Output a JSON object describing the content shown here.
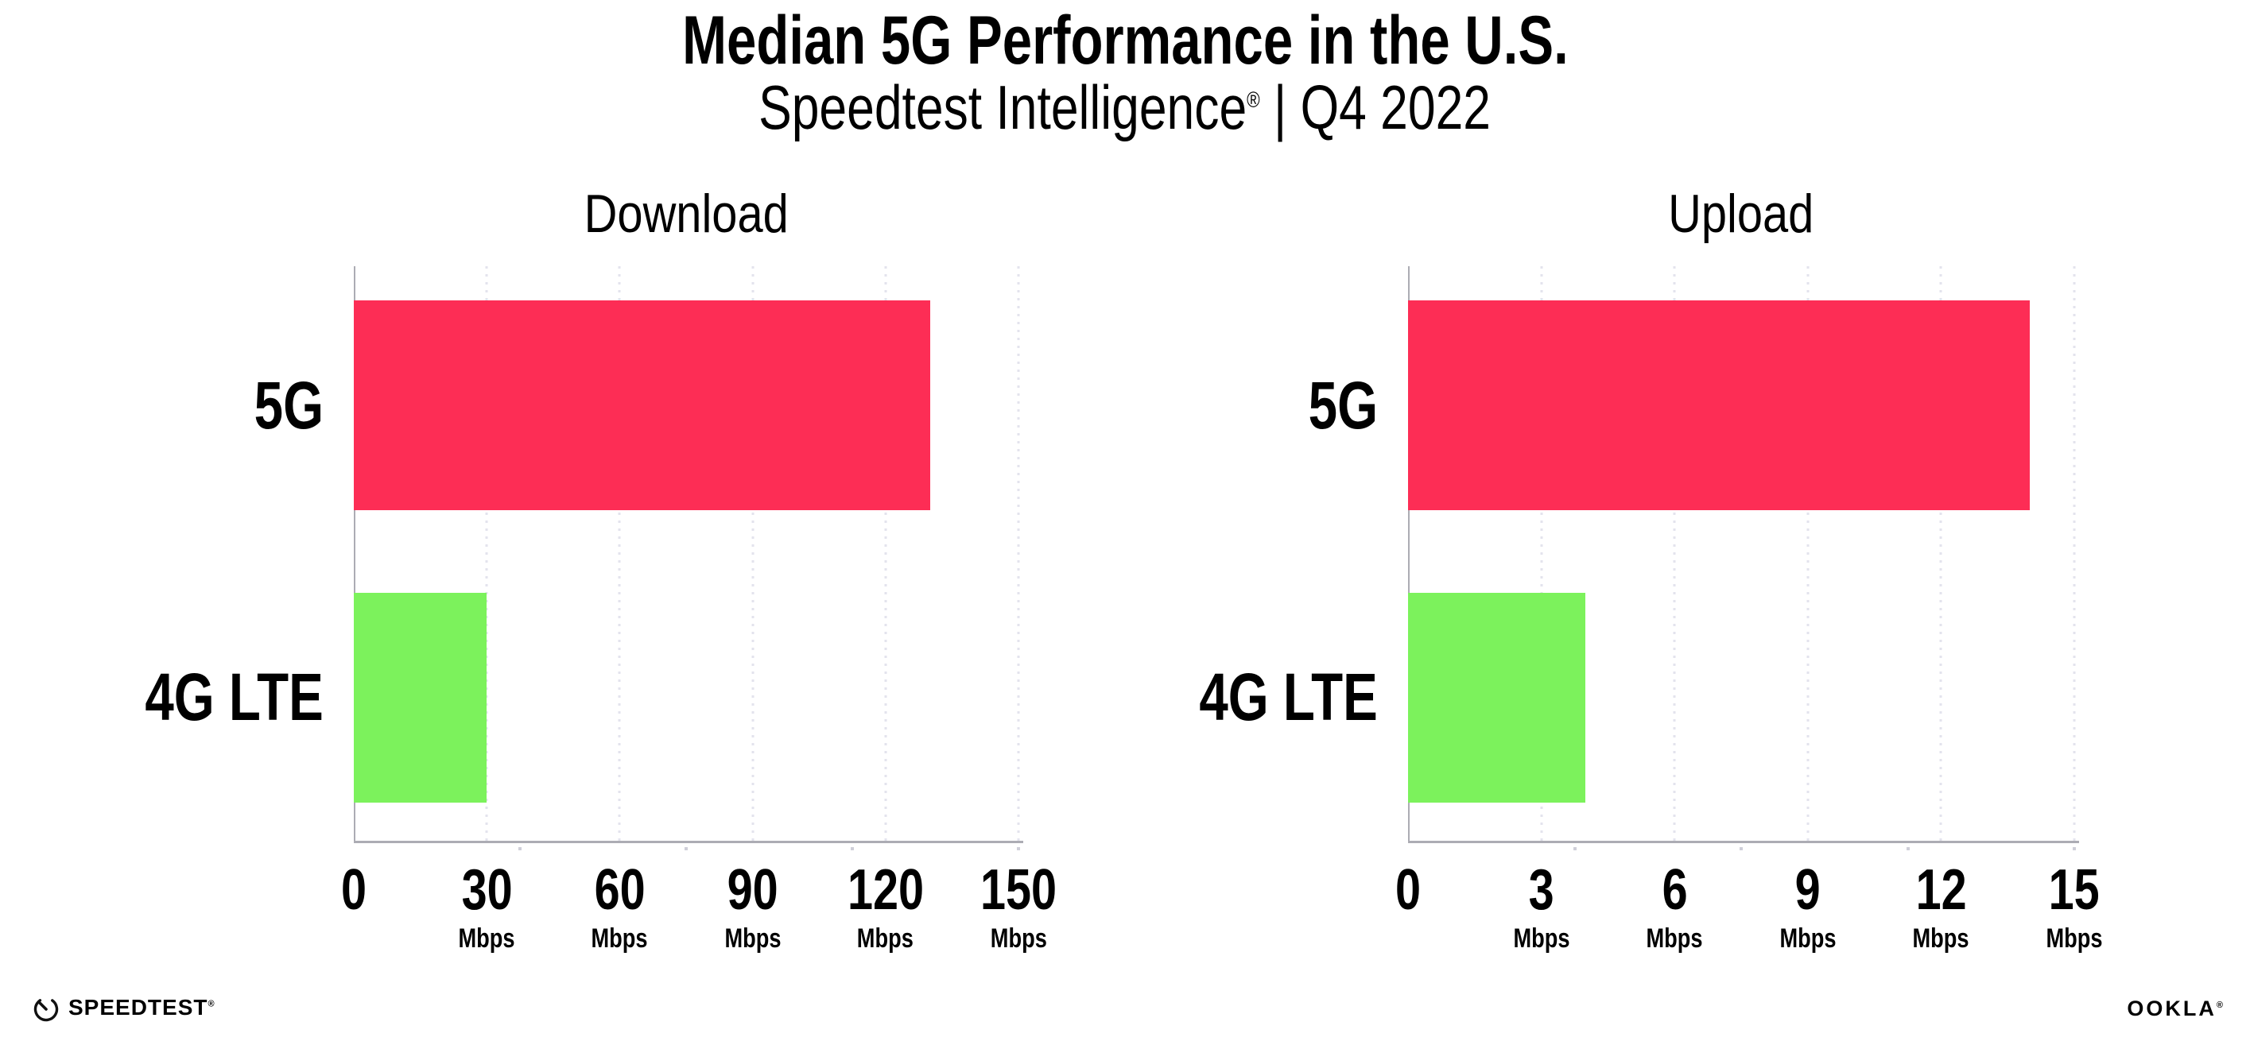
{
  "title": "Median 5G Performance in the U.S.",
  "subtitle": {
    "main": "Speedtest Intelligence",
    "reg": "®",
    "rest": " | Q4 2022"
  },
  "colors": {
    "bar_5g": "#FD2D55",
    "bar_4g_lte": "#7CF25C",
    "gridline": "#E3E3ED",
    "axis": "#ACACB4",
    "text": "#000000"
  },
  "chart_data": [
    {
      "type": "bar",
      "orientation": "horizontal",
      "title": "Download",
      "categories": [
        "5G",
        "4G LTE"
      ],
      "values": [
        130,
        30
      ],
      "unit": "Mbps",
      "xlim": [
        0,
        150
      ],
      "xticks": [
        0,
        30,
        60,
        90,
        120,
        150
      ],
      "tick_unit_label": "Mbps",
      "grid": "vertical-dotted",
      "legend": "none",
      "bar_colors": [
        "#FD2D55",
        "#7CF25C"
      ]
    },
    {
      "type": "bar",
      "orientation": "horizontal",
      "title": "Upload",
      "categories": [
        "5G",
        "4G LTE"
      ],
      "values": [
        14,
        4
      ],
      "unit": "Mbps",
      "xlim": [
        0,
        15
      ],
      "xticks": [
        0,
        3,
        6,
        9,
        12,
        15
      ],
      "tick_unit_label": "Mbps",
      "grid": "vertical-dotted",
      "legend": "none",
      "bar_colors": [
        "#FD2D55",
        "#7CF25C"
      ]
    }
  ],
  "footer": {
    "speedtest_wordmark": "SPEEDTEST",
    "speedtest_reg": "®",
    "gauge_icon": "speedtest-gauge",
    "ookla_wordmark": "OOKLA",
    "ookla_reg": "®"
  }
}
